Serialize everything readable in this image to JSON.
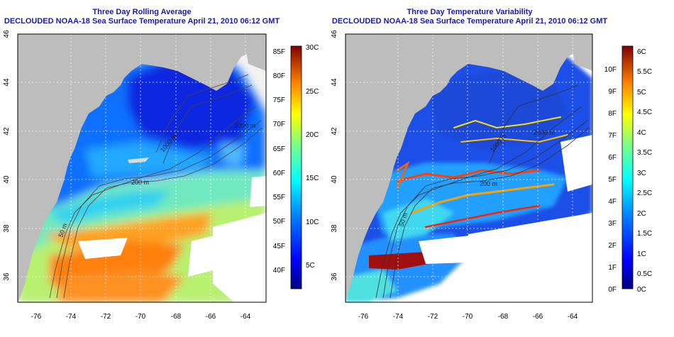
{
  "left": {
    "title1": "Three Day Rolling Average",
    "title2": "DECLOUDED NOAA-18 Sea Surface Temperature April 21, 2010 06:12 GMT",
    "colorbar_f": [
      "85F",
      "80F",
      "75F",
      "70F",
      "65F",
      "60F",
      "55F",
      "50F",
      "45F",
      "40F"
    ],
    "colorbar_c": [
      "30C",
      "25C",
      "20C",
      "15C",
      "10C",
      "5C"
    ],
    "contours": [
      "1000 m",
      "200 m",
      "50 m",
      "2000 m"
    ]
  },
  "right": {
    "title1": "Three Day Temperature Variability",
    "title2": "DECLOUDED NOAA-18 Sea Surface Temperature April 21, 2010 06:12 GMT",
    "colorbar_f": [
      "10F",
      "9F",
      "8F",
      "7F",
      "6F",
      "5F",
      "4F",
      "3F",
      "2F",
      "1F",
      "0F"
    ],
    "colorbar_c": [
      "6C",
      "5.5C",
      "5C",
      "4.5C",
      "4C",
      "3.5C",
      "3C",
      "2.5C",
      "2C",
      "1.5C",
      "1C",
      "0.5C",
      "0C"
    ],
    "contours": [
      "1000 m",
      "200 m",
      "50 m",
      "2000 m"
    ]
  },
  "axes": {
    "lon": [
      "-76",
      "-74",
      "-72",
      "-70",
      "-68",
      "-66",
      "-64"
    ],
    "lat": [
      "46",
      "44",
      "42",
      "40",
      "38",
      "36"
    ]
  },
  "colors": {
    "land": "#bdbdbd",
    "title": "#1a1aa8",
    "no_data": "#ffffff"
  }
}
